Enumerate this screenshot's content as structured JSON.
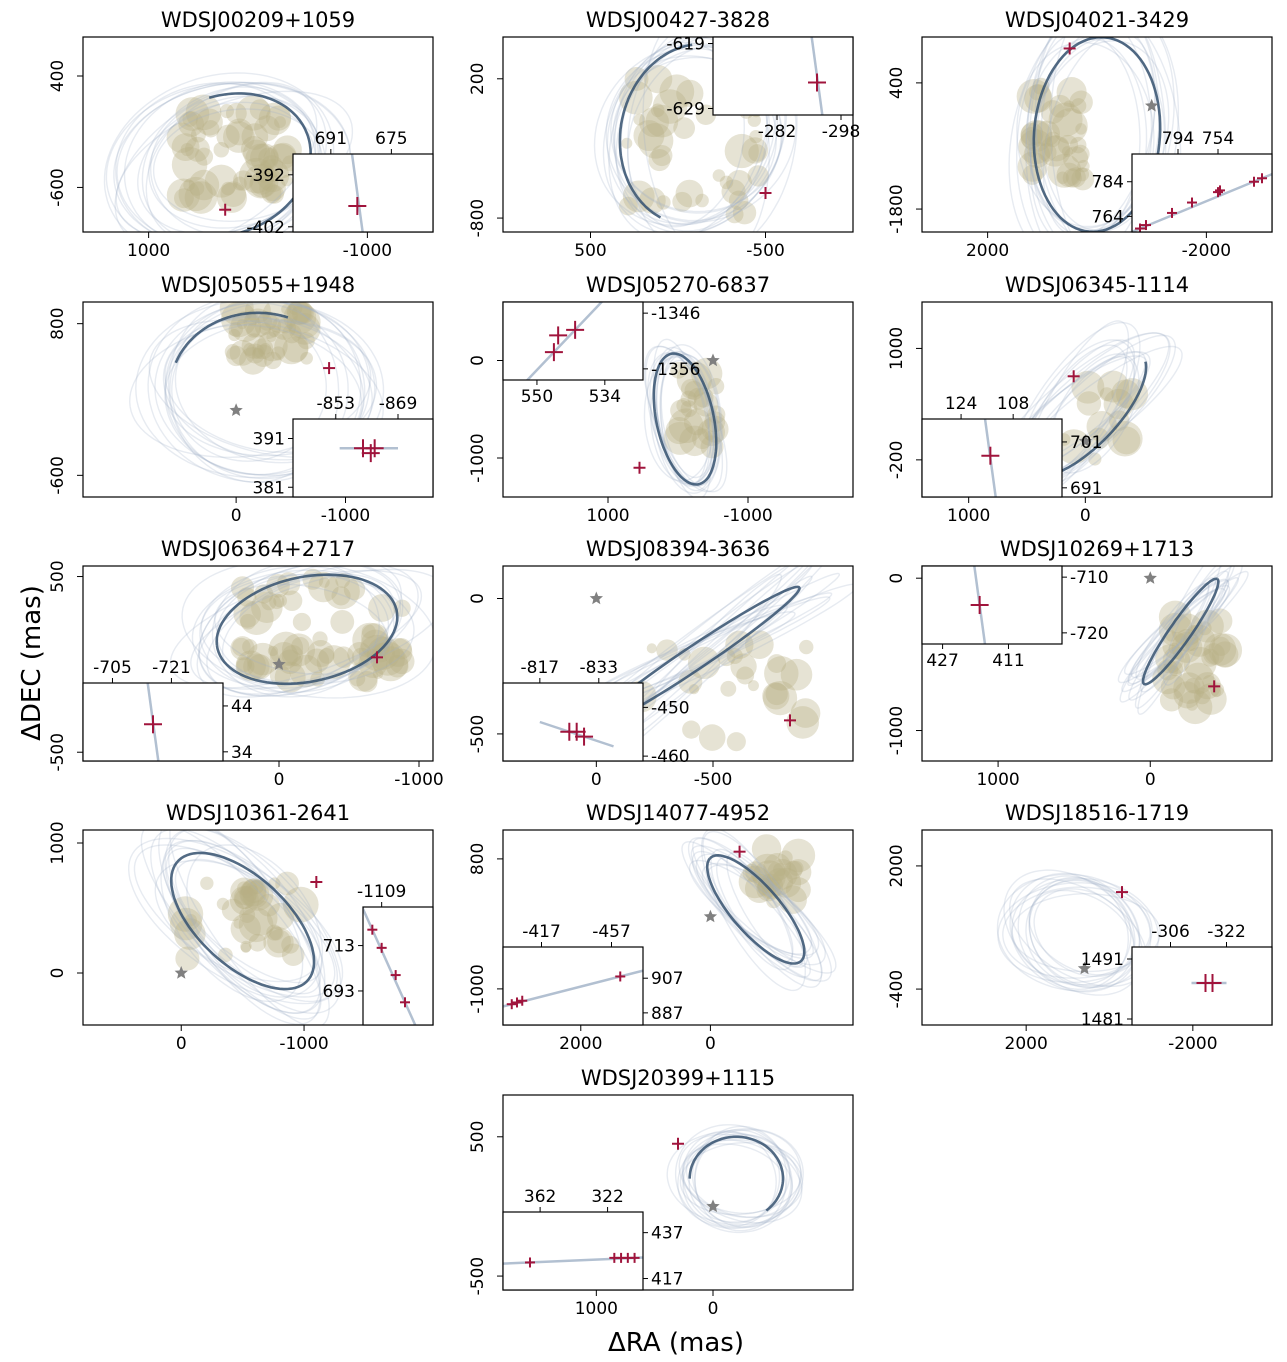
{
  "figure": {
    "xlabel": "ΔRA (mas)",
    "ylabel": "ΔDEC (mas)",
    "colors": {
      "orbit": "#35516e",
      "orbit_faint": "#9fb0c6",
      "data": "#b8ae84",
      "marker": "#a0143c",
      "star": "#808080"
    }
  },
  "chart_data": [
    {
      "type": "scatter",
      "title": "WDSJ00209+1059",
      "xticks": [
        1000,
        -1000
      ],
      "yticks": [
        400,
        -600
      ],
      "xlim": [
        1600,
        -1600
      ],
      "ylim": [
        -1000,
        750
      ],
      "star": [
        -1000,
        -500
      ],
      "ellipse": {
        "center": [
          300,
          -400
        ],
        "a": 800,
        "b": 620,
        "angle": -20
      },
      "orbit_arc": [
        95,
        290
      ],
      "epochs": [
        [
          300,
          -800
        ]
      ],
      "data_cloud": {
        "center": [
          200,
          -300
        ],
        "spread": [
          500,
          400
        ],
        "count": 60
      },
      "inset": {
        "xticks": [
          691,
          675
        ],
        "yticks": [
          -392,
          -402
        ],
        "xlim": [
          701,
          664
        ],
        "ylim": [
          -403,
          -388
        ],
        "loc": "lower-right",
        "points": [
          [
            684,
            -398
          ]
        ]
      }
    },
    {
      "type": "scatter",
      "title": "WDSJ00427-3828",
      "xticks": [
        500,
        -500
      ],
      "yticks": [
        200,
        -800
      ],
      "xlim": [
        1000,
        -1000
      ],
      "ylim": [
        -900,
        500
      ],
      "star": [
        -300,
        100
      ],
      "ellipse": {
        "center": [
          -100,
          -200
        ],
        "a": 650,
        "b": 430,
        "angle": 95
      },
      "orbit_arc": [
        200,
        350
      ],
      "epochs": [
        [
          -500,
          -620
        ]
      ],
      "data_cloud": {
        "center": [
          -100,
          -300
        ],
        "spread": [
          400,
          500
        ],
        "count": 40
      },
      "inset": {
        "xticks": [
          -282,
          -298
        ],
        "yticks": [
          -619,
          -629
        ],
        "xlim": [
          -266,
          -301
        ],
        "ylim": [
          -630,
          -618
        ],
        "loc": "upper-right",
        "points": [
          [
            -292,
            -625
          ]
        ]
      }
    },
    {
      "type": "scatter",
      "title": "WDSJ04021-3429",
      "xticks": [
        2000,
        -2000
      ],
      "yticks": [
        400,
        -1800
      ],
      "xlim": [
        3200,
        -3200
      ],
      "ylim": [
        -2200,
        1200
      ],
      "star": [
        -1000,
        0
      ],
      "ellipse": {
        "center": [
          0,
          -500
        ],
        "a": 1700,
        "b": 1150,
        "angle": 95
      },
      "orbit_arc": [
        0,
        360
      ],
      "epochs": [
        [
          500,
          1000
        ]
      ],
      "data_cloud": {
        "center": [
          700,
          -400
        ],
        "spread": [
          500,
          900
        ],
        "count": 40
      },
      "inset": {
        "xticks": [
          794,
          754
        ],
        "yticks": [
          784,
          764
        ],
        "xlim": [
          840,
          700
        ],
        "ylim": [
          755,
          800
        ],
        "loc": "lower-right",
        "points": [
          [
            832,
            757
          ],
          [
            826,
            759
          ],
          [
            800,
            766
          ],
          [
            780,
            772
          ],
          [
            754,
            778
          ],
          [
            752,
            779
          ],
          [
            718,
            784
          ],
          [
            710,
            786
          ]
        ]
      }
    },
    {
      "type": "scatter",
      "title": "WDSJ05055+1948",
      "xticks": [
        0,
        -1000
      ],
      "yticks": [
        800,
        -600
      ],
      "xlim": [
        1400,
        -1800
      ],
      "ylim": [
        -800,
        1000
      ],
      "star": [
        0,
        0
      ],
      "ellipse": {
        "center": [
          -200,
          200
        ],
        "a": 800,
        "b": 700,
        "angle": 0
      },
      "orbit_arc": [
        20,
        110
      ],
      "epochs": [
        [
          -850,
          390
        ]
      ],
      "data_cloud": {
        "center": [
          -300,
          700
        ],
        "spread": [
          350,
          250
        ],
        "count": 45
      },
      "inset": {
        "xticks": [
          -853,
          -869
        ],
        "yticks": [
          391,
          381
        ],
        "xlim": [
          -842,
          -878
        ],
        "ylim": [
          379,
          395
        ],
        "loc": "lower-right",
        "points": [
          [
            -860,
            389
          ],
          [
            -862,
            388
          ],
          [
            -863,
            389
          ]
        ]
      }
    },
    {
      "type": "scatter",
      "title": "WDSJ05270-6837",
      "xticks": [
        1000,
        -1000
      ],
      "yticks": [
        0,
        -1000
      ],
      "xlim": [
        2500,
        -2500
      ],
      "ylim": [
        -1400,
        600
      ],
      "star": [
        -500,
        0
      ],
      "ellipse": {
        "center": [
          -100,
          -600
        ],
        "a": 700,
        "b": 400,
        "angle": 70
      },
      "orbit_arc": [
        0,
        360
      ],
      "epochs": [
        [
          550,
          -1100
        ]
      ],
      "data_cloud": {
        "center": [
          -300,
          -500
        ],
        "spread": [
          300,
          400
        ],
        "count": 25
      },
      "inset": {
        "xticks": [
          550,
          534
        ],
        "yticks": [
          -1346,
          -1356
        ],
        "xlim": [
          558,
          525
        ],
        "ylim": [
          -1358,
          -1344
        ],
        "loc": "upper-left",
        "points": [
          [
            546,
            -1353
          ],
          [
            545,
            -1350
          ],
          [
            541,
            -1349
          ]
        ]
      }
    },
    {
      "type": "scatter",
      "title": "WDSJ06345-1114",
      "xticks": [
        1000,
        0
      ],
      "yticks": [
        1000,
        -200
      ],
      "xlim": [
        1400,
        -1600
      ],
      "ylim": [
        -600,
        1500
      ],
      "star": [
        0,
        0
      ],
      "ellipse": {
        "center": [
          0,
          300
        ],
        "a": 800,
        "b": 300,
        "angle": -55
      },
      "orbit_arc": [
        200,
        360
      ],
      "epochs": [
        [
          100,
          700
        ]
      ],
      "data_cloud": {
        "center": [
          -100,
          200
        ],
        "spread": [
          300,
          400
        ],
        "count": 15
      },
      "inset": {
        "xticks": [
          124,
          108
        ],
        "yticks": [
          701,
          691
        ],
        "xlim": [
          136,
          93
        ],
        "ylim": [
          689,
          706
        ],
        "loc": "lower-left",
        "points": [
          [
            115,
            698
          ]
        ]
      }
    },
    {
      "type": "scatter",
      "title": "WDSJ06364+2717",
      "xticks": [
        0,
        -1000
      ],
      "yticks": [
        500,
        -500
      ],
      "xlim": [
        1400,
        -1100
      ],
      "ylim": [
        -550,
        560
      ],
      "star": [
        0,
        0
      ],
      "ellipse": {
        "center": [
          -200,
          200
        ],
        "a": 650,
        "b": 300,
        "angle": -8
      },
      "orbit_arc": [
        0,
        360
      ],
      "epochs": [
        [
          -700,
          40
        ]
      ],
      "data_cloud": {
        "center": [
          -300,
          200
        ],
        "spread": [
          600,
          300
        ],
        "count": 70
      },
      "inset": {
        "xticks": [
          -705,
          -721
        ],
        "yticks": [
          44,
          34
        ],
        "xlim": [
          -697,
          -735
        ],
        "ylim": [
          32,
          49
        ],
        "loc": "lower-left",
        "points": [
          [
            -716,
            40
          ]
        ]
      }
    },
    {
      "type": "scatter",
      "title": "WDSJ08394-3636",
      "xticks": [
        0,
        -500
      ],
      "yticks": [
        0,
        -500
      ],
      "xlim": [
        400,
        -1100
      ],
      "ylim": [
        -600,
        120
      ],
      "star": [
        0,
        0
      ],
      "ellipse": {
        "center": [
          -420,
          -220
        ],
        "a": 520,
        "b": 45,
        "angle": -30
      },
      "orbit_arc": [
        0,
        360
      ],
      "epochs": [
        [
          -830,
          -450
        ]
      ],
      "data_cloud": {
        "center": [
          -500,
          -350
        ],
        "spread": [
          400,
          180
        ],
        "count": 30
      },
      "inset": {
        "xticks": [
          -817,
          -833
        ],
        "yticks": [
          -450,
          -460
        ],
        "xlim": [
          -807,
          -845
        ],
        "ylim": [
          -461,
          -445
        ],
        "loc": "lower-left",
        "points": [
          [
            -825,
            -455
          ],
          [
            -827,
            -455
          ],
          [
            -829,
            -456
          ]
        ]
      }
    },
    {
      "type": "scatter",
      "title": "WDSJ10269+1713",
      "xticks": [
        1000,
        0
      ],
      "yticks": [
        0,
        -1000
      ],
      "xlim": [
        1500,
        -800
      ],
      "ylim": [
        -1200,
        80
      ],
      "star": [
        0,
        0
      ],
      "ellipse": {
        "center": [
          -200,
          -350
        ],
        "a": 420,
        "b": 70,
        "angle": 125
      },
      "orbit_arc": [
        0,
        360
      ],
      "epochs": [
        [
          -420,
          -710
        ]
      ],
      "data_cloud": {
        "center": [
          -300,
          -550
        ],
        "spread": [
          200,
          300
        ],
        "count": 40
      },
      "inset": {
        "xticks": [
          427,
          411
        ],
        "yticks": [
          -710,
          -720
        ],
        "xlim": [
          432,
          398
        ],
        "ylim": [
          -722,
          -708
        ],
        "loc": "upper-left",
        "points": [
          [
            418,
            -715
          ]
        ]
      }
    },
    {
      "type": "scatter",
      "title": "WDSJ10361-2641",
      "xticks": [
        0,
        -1000
      ],
      "yticks": [
        1000,
        0
      ],
      "xlim": [
        800,
        -2050
      ],
      "ylim": [
        -400,
        1100
      ],
      "star": [
        0,
        0
      ],
      "ellipse": {
        "center": [
          -500,
          400
        ],
        "a": 700,
        "b": 350,
        "angle": 40
      },
      "orbit_arc": [
        0,
        360
      ],
      "epochs": [
        [
          -1100,
          700
        ]
      ],
      "data_cloud": {
        "center": [
          -500,
          400
        ],
        "spread": [
          500,
          300
        ],
        "count": 40
      },
      "inset": {
        "xticks": [
          -1109
        ],
        "yticks": [
          713,
          693
        ],
        "xlim": [
          -1105,
          -1120
        ],
        "ylim": [
          678,
          730
        ],
        "loc": "right",
        "points": [
          [
            -1107,
            720
          ],
          [
            -1109,
            712
          ],
          [
            -1112,
            700
          ],
          [
            -1114,
            688
          ]
        ]
      }
    },
    {
      "type": "scatter",
      "title": "WDSJ14077-4952",
      "xticks": [
        2000,
        0
      ],
      "yticks": [
        800,
        -1000
      ],
      "xlim": [
        3200,
        -2200
      ],
      "ylim": [
        -1500,
        1200
      ],
      "star": [
        0,
        0
      ],
      "ellipse": {
        "center": [
          -700,
          100
        ],
        "a": 1000,
        "b": 350,
        "angle": 45
      },
      "orbit_arc": [
        0,
        360
      ],
      "epochs": [
        [
          -450,
          900
        ]
      ],
      "data_cloud": {
        "center": [
          -1000,
          600
        ],
        "spread": [
          400,
          400
        ],
        "count": 25
      },
      "inset": {
        "xticks": [
          -417,
          -457
        ],
        "yticks": [
          907,
          887
        ],
        "xlim": [
          -395,
          -475
        ],
        "ylim": [
          880,
          925
        ],
        "loc": "lower-left",
        "points": [
          [
            -400,
            892
          ],
          [
            -403,
            893
          ],
          [
            -406,
            894
          ],
          [
            -462,
            908
          ]
        ]
      }
    },
    {
      "type": "scatter",
      "title": "WDSJ18516-1719",
      "xticks": [
        2000,
        -2000
      ],
      "yticks": [
        2000,
        -400
      ],
      "xlim": [
        4500,
        -3900
      ],
      "ylim": [
        -1100,
        2700
      ],
      "star": [
        600,
        0
      ],
      "ellipse": {
        "center": [
          700,
          700
        ],
        "a": 1300,
        "b": 900,
        "angle": 10
      },
      "orbit_arc": [
        0,
        0
      ],
      "epochs": [
        [
          -300,
          1490
        ]
      ],
      "data_cloud": {
        "center": [
          0,
          0
        ],
        "spread": [
          0,
          0
        ],
        "count": 0
      },
      "inset": {
        "xticks": [
          -306,
          -322
        ],
        "yticks": [
          1491,
          1481
        ],
        "xlim": [
          -295,
          -335
        ],
        "ylim": [
          1480,
          1493
        ],
        "loc": "lower-right",
        "points": [
          [
            -316,
            1487
          ],
          [
            -318,
            1487
          ]
        ]
      }
    },
    {
      "type": "scatter",
      "title": "WDSJ20399+1115",
      "xticks": [
        1000,
        0
      ],
      "yticks": [
        500,
        -500
      ],
      "xlim": [
        1800,
        -1200
      ],
      "ylim": [
        -600,
        800
      ],
      "star": [
        0,
        0
      ],
      "ellipse": {
        "center": [
          -200,
          200
        ],
        "a": 400,
        "b": 300,
        "angle": 0
      },
      "orbit_arc": [
        0,
        230
      ],
      "epochs": [
        [
          300,
          450
        ]
      ],
      "data_cloud": {
        "center": [
          0,
          0
        ],
        "spread": [
          0,
          0
        ],
        "count": 0
      },
      "inset": {
        "xticks": [
          362,
          322
        ],
        "yticks": [
          437,
          417
        ],
        "xlim": [
          384,
          301
        ],
        "ylim": [
          412,
          446
        ],
        "loc": "lower-left",
        "points": [
          [
            368,
            424
          ],
          [
            318,
            426
          ],
          [
            314,
            426
          ],
          [
            310,
            426
          ],
          [
            306,
            426
          ]
        ]
      }
    }
  ]
}
